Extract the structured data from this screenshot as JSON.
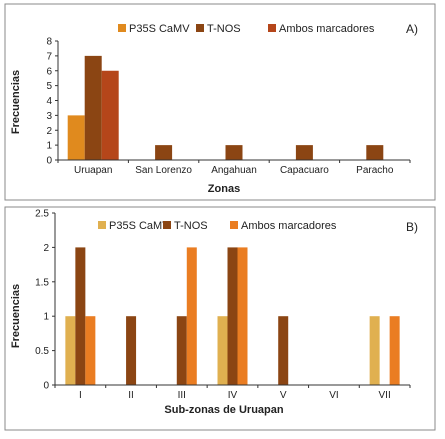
{
  "chart_data": [
    {
      "type": "bar",
      "panel_label": "A)",
      "xlabel": "Zonas",
      "ylabel": "Frecuencias",
      "ylim": [
        0,
        8
      ],
      "yticks": [
        "0",
        "1",
        "2",
        "3",
        "4",
        "5",
        "6",
        "7",
        "8"
      ],
      "categories": [
        "Uruapan",
        "San Lorenzo",
        "Angahuan",
        "Capacuaro",
        "Paracho"
      ],
      "series": [
        {
          "name": "P35S CaMV",
          "color": "#e08a1e",
          "values": [
            3,
            0,
            0,
            0,
            0
          ]
        },
        {
          "name": "T-NOS",
          "color": "#8b4513",
          "values": [
            7,
            1,
            1,
            1,
            1
          ]
        },
        {
          "name": "Ambos marcadores",
          "color": "#b5461a",
          "values": [
            6,
            0,
            0,
            0,
            0
          ]
        }
      ],
      "legend": "top"
    },
    {
      "type": "bar",
      "panel_label": "B)",
      "xlabel": "Sub-zonas de Uruapan",
      "ylabel": "Frecuencias",
      "ylim": [
        0,
        2.5
      ],
      "yticks": [
        "0",
        "0.5",
        "1",
        "1.5",
        "2",
        "2.5"
      ],
      "categories": [
        "I",
        "II",
        "III",
        "IV",
        "V",
        "VI",
        "VII"
      ],
      "series": [
        {
          "name": "P35S CaMV",
          "color": "#e0b050",
          "values": [
            1,
            0,
            0,
            1,
            0,
            0,
            1
          ]
        },
        {
          "name": "T-NOS",
          "color": "#8b4513",
          "values": [
            2,
            1,
            1,
            2,
            1,
            0,
            0
          ]
        },
        {
          "name": "Ambos marcadores",
          "color": "#ea7d22",
          "values": [
            1,
            0,
            2,
            2,
            0,
            0,
            1
          ]
        }
      ],
      "legend": "top"
    }
  ]
}
